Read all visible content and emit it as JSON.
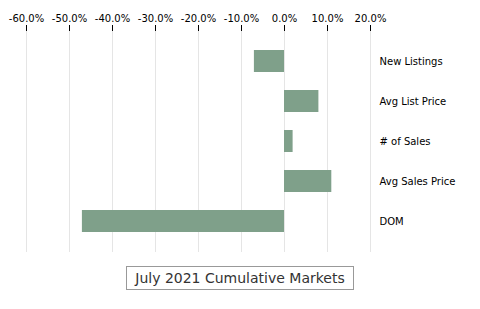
{
  "chart_data": {
    "type": "bar",
    "orientation": "horizontal",
    "title": "July 2021 Cumulative Markets",
    "categories": [
      "New Listings",
      "Avg List Price",
      "# of Sales",
      "Avg Sales Price",
      "DOM"
    ],
    "values": [
      -7.0,
      8.0,
      2.0,
      11.0,
      -47.0
    ],
    "color": "#7fa08a",
    "xlim": [
      -60.0,
      20.0
    ],
    "xticks": [
      {
        "value": -60.0,
        "label": "-60.0%"
      },
      {
        "value": -50.0,
        "label": "-50.0%"
      },
      {
        "value": -40.0,
        "label": "-40.0%"
      },
      {
        "value": -30.0,
        "label": "-30.0%"
      },
      {
        "value": -20.0,
        "label": "-20.0%"
      },
      {
        "value": -10.0,
        "label": "-10.0%"
      },
      {
        "value": 0.0,
        "label": "0.0%"
      },
      {
        "value": 10.0,
        "label": "10.0%"
      },
      {
        "value": 20.0,
        "label": "20.0%"
      }
    ],
    "grid": true
  }
}
